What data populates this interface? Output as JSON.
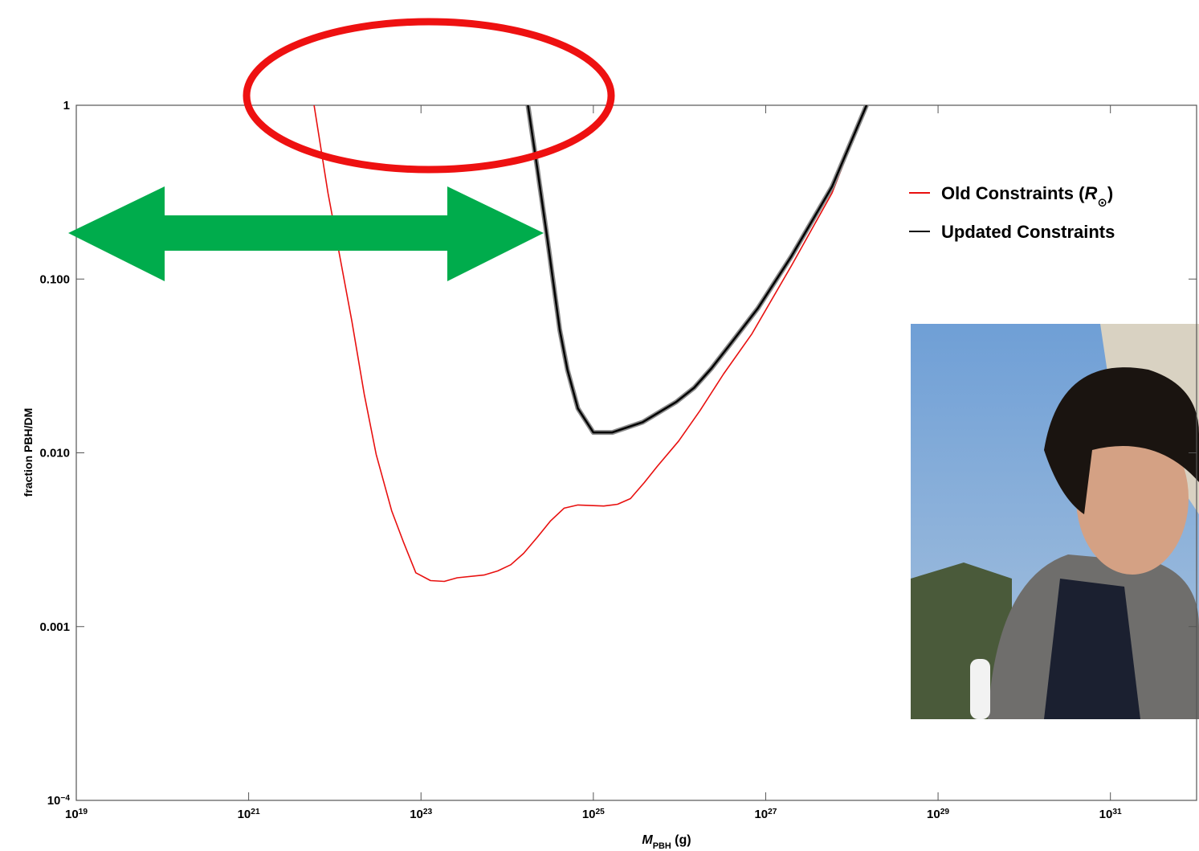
{
  "chart_data": {
    "type": "line",
    "x_label": "M_PBH (g)",
    "y_label": "fraction PBH/DM",
    "xscale": "log",
    "yscale": "log",
    "xlim": [
      1e+19,
      1e+32
    ],
    "ylim": [
      0.0001,
      1
    ],
    "xticks": [
      {
        "value": 1e+19,
        "label": "10^19"
      },
      {
        "value": 1e+21,
        "label": "10^21"
      },
      {
        "value": 1e+23,
        "label": "10^23"
      },
      {
        "value": 1e+25,
        "label": "10^25"
      },
      {
        "value": 1e+27,
        "label": "10^27"
      },
      {
        "value": 1e+29,
        "label": "10^29"
      },
      {
        "value": 1e+31,
        "label": "10^31"
      }
    ],
    "yticks": [
      {
        "value": 0.0001,
        "label": "10^−4"
      },
      {
        "value": 0.001,
        "label": "0.001"
      },
      {
        "value": 0.01,
        "label": "0.010"
      },
      {
        "value": 0.1,
        "label": "0.100"
      },
      1
    ],
    "series": [
      {
        "name": "Old Constraints (R_⊙)",
        "color": "#e8100f",
        "x": [
          5.75e+21,
          8.32e+21,
          1.15e+22,
          1.58e+22,
          2.19e+22,
          3.02e+22,
          4.57e+22,
          6.31e+22,
          8.71e+22,
          1.29e+23,
          1.86e+23,
          2.63e+23,
          5.37e+23,
          7.76e+23,
          1.1e+24,
          1.55e+24,
          2.24e+24,
          3.16e+24,
          4.57e+24,
          6.61e+24,
          1.32e+25,
          1.91e+25,
          2.69e+25,
          3.89e+25,
          5.5e+25,
          9.77e+25,
          1.74e+26,
          3.24e+26,
          6.92e+26,
          2e+27,
          5.89e+27,
          1.48e+28
        ],
        "values": [
          1,
          0.313,
          0.133,
          0.057,
          0.0218,
          0.0098,
          0.00464,
          0.00303,
          0.00204,
          0.00184,
          0.00182,
          0.00191,
          0.00198,
          0.00209,
          0.00227,
          0.00264,
          0.00327,
          0.00404,
          0.0048,
          0.00501,
          0.00494,
          0.00506,
          0.00545,
          0.00674,
          0.00834,
          0.0117,
          0.0176,
          0.0284,
          0.0484,
          0.12,
          0.313,
          1
        ]
      },
      {
        "name": "Updated Constraints",
        "color": "#000000",
        "x": [
          1.74e+24,
          2.24e+24,
          2.95e+24,
          4.07e+24,
          5.01e+24,
          6.61e+24,
          1e+25,
          1.66e+25,
          3.72e+25,
          9.12e+25,
          1.48e+26,
          2.34e+26,
          4.07e+26,
          8.13e+26,
          2e+27,
          5.89e+27,
          1.48e+28
        ],
        "values": [
          1,
          0.431,
          0.165,
          0.051,
          0.03,
          0.018,
          0.0131,
          0.0131,
          0.015,
          0.0196,
          0.0237,
          0.0306,
          0.0435,
          0.068,
          0.136,
          0.34,
          1
        ]
      }
    ]
  }
}
